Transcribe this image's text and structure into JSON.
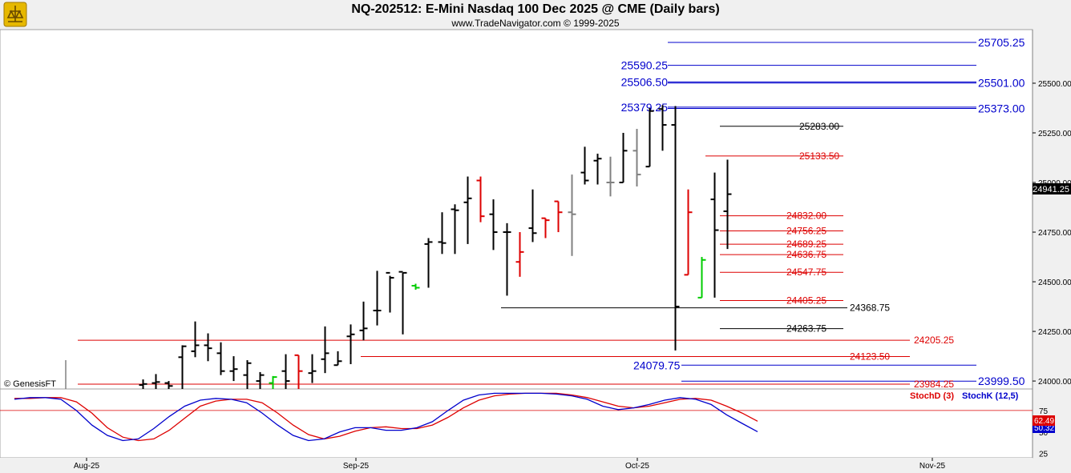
{
  "header": {
    "title": "NQ-202512:  E-Mini Nasdaq 100 Dec 2025 @ CME  (Daily bars)",
    "subtitle": "www.TradeNavigator.com © 1999-2025"
  },
  "watermark": "© GenesisFT",
  "colors": {
    "blue": "#0000cc",
    "red": "#dd0000",
    "black": "#000000",
    "green": "#00cc00",
    "gray": "#808080",
    "price_bg": "#000000"
  },
  "chart_data": [
    {
      "type": "ohlc",
      "title": "NQ-202512:  E-Mini Nasdaq 100 Dec 2025 @ CME  (Daily bars)",
      "x_ticks": [
        "Aug-25",
        "Sep-25",
        "Oct-25",
        "Nov-25"
      ],
      "y_ticks": [
        "25500.00",
        "25250.00",
        "25000.00",
        "24750.00",
        "24500.00",
        "24250.00",
        "24000.00"
      ],
      "ylim": [
        23960,
        25770
      ],
      "last_price": "24941.25",
      "levels": [
        {
          "label": "25705.25",
          "value": 25705.25,
          "color": "blue"
        },
        {
          "label": "25590.25",
          "value": 25590.25,
          "color": "blue"
        },
        {
          "label": "25506.50",
          "value": 25506.5,
          "color": "blue"
        },
        {
          "label": "25501.00",
          "value": 25501.0,
          "color": "blue"
        },
        {
          "label": "25379.25",
          "value": 25379.25,
          "color": "blue"
        },
        {
          "label": "25373.00",
          "value": 25373.0,
          "color": "blue"
        },
        {
          "label": "25283.00",
          "value": 25283.0,
          "color": "black"
        },
        {
          "label": "25133.50",
          "value": 25133.5,
          "color": "red"
        },
        {
          "label": "24832.00",
          "value": 24832.0,
          "color": "red"
        },
        {
          "label": "24756.25",
          "value": 24756.25,
          "color": "red"
        },
        {
          "label": "24689.25",
          "value": 24689.25,
          "color": "red"
        },
        {
          "label": "24636.75",
          "value": 24636.75,
          "color": "red"
        },
        {
          "label": "24547.75",
          "value": 24547.75,
          "color": "red"
        },
        {
          "label": "24405.25",
          "value": 24405.25,
          "color": "red"
        },
        {
          "label": "24368.75",
          "value": 24368.75,
          "color": "black"
        },
        {
          "label": "24263.75",
          "value": 24263.75,
          "color": "black"
        },
        {
          "label": "24205.25",
          "value": 24205.25,
          "color": "red"
        },
        {
          "label": "24123.50",
          "value": 24123.5,
          "color": "red"
        },
        {
          "label": "24079.75",
          "value": 24079.75,
          "color": "blue"
        },
        {
          "label": "23999.50",
          "value": 23999.5,
          "color": "blue"
        },
        {
          "label": "23984.25",
          "value": 23984.25,
          "color": "red"
        }
      ],
      "bars": [
        {
          "o": 23980,
          "h": 24008,
          "l": 23960,
          "c": 23985,
          "color": "black"
        },
        {
          "o": 23990,
          "h": 24035,
          "l": 23960,
          "c": 23995,
          "color": "black"
        },
        {
          "o": 23990,
          "h": 24000,
          "l": 23960,
          "c": 23975,
          "color": "black"
        },
        {
          "o": 24120,
          "h": 24180,
          "l": 23960,
          "c": 24175,
          "color": "black"
        },
        {
          "o": 24150,
          "h": 24300,
          "l": 24120,
          "c": 24180,
          "color": "black"
        },
        {
          "o": 24180,
          "h": 24240,
          "l": 24100,
          "c": 24165,
          "color": "black"
        },
        {
          "o": 24140,
          "h": 24195,
          "l": 24030,
          "c": 24050,
          "color": "black"
        },
        {
          "o": 24050,
          "h": 24125,
          "l": 24000,
          "c": 24060,
          "color": "black"
        },
        {
          "o": 24030,
          "h": 24105,
          "l": 23960,
          "c": 24090,
          "color": "black"
        },
        {
          "o": 24000,
          "h": 24045,
          "l": 23960,
          "c": 24030,
          "color": "black"
        },
        {
          "o": 23990,
          "h": 24025,
          "l": 23960,
          "c": 24020,
          "color": "green"
        },
        {
          "o": 24050,
          "h": 24135,
          "l": 23960,
          "c": 24000,
          "color": "black"
        },
        {
          "o": 24130,
          "h": 24130,
          "l": 23960,
          "c": 24050,
          "color": "red"
        },
        {
          "o": 24040,
          "h": 24135,
          "l": 23990,
          "c": 24050,
          "color": "black"
        },
        {
          "o": 24110,
          "h": 24275,
          "l": 24040,
          "c": 24140,
          "color": "black"
        },
        {
          "o": 24080,
          "h": 24150,
          "l": 24080,
          "c": 24100,
          "color": "black"
        },
        {
          "o": 24225,
          "h": 24285,
          "l": 24085,
          "c": 24235,
          "color": "black"
        },
        {
          "o": 24255,
          "h": 24400,
          "l": 24205,
          "c": 24265,
          "color": "black"
        },
        {
          "o": 24355,
          "h": 24555,
          "l": 24280,
          "c": 24355,
          "color": "black"
        },
        {
          "o": 24545,
          "h": 24530,
          "l": 24345,
          "c": 24520,
          "color": "black"
        },
        {
          "o": 24550,
          "h": 24545,
          "l": 24235,
          "c": 24545,
          "color": "black"
        },
        {
          "o": 24480,
          "h": 24490,
          "l": 24460,
          "c": 24470,
          "color": "green"
        },
        {
          "o": 24690,
          "h": 24720,
          "l": 24470,
          "c": 24700,
          "color": "black"
        },
        {
          "o": 24700,
          "h": 24850,
          "l": 24640,
          "c": 24695,
          "color": "black"
        },
        {
          "o": 24865,
          "h": 24890,
          "l": 24640,
          "c": 24860,
          "color": "black"
        },
        {
          "o": 24900,
          "h": 25030,
          "l": 24690,
          "c": 24920,
          "color": "black"
        },
        {
          "o": 25010,
          "h": 25030,
          "l": 24800,
          "c": 24830,
          "color": "red"
        },
        {
          "o": 24840,
          "h": 24915,
          "l": 24660,
          "c": 24750,
          "color": "black"
        },
        {
          "o": 24750,
          "h": 24795,
          "l": 24430,
          "c": 24750,
          "color": "black"
        },
        {
          "o": 24600,
          "h": 24750,
          "l": 24525,
          "c": 24650,
          "color": "red"
        },
        {
          "o": 24770,
          "h": 24965,
          "l": 24700,
          "c": 24745,
          "color": "black"
        },
        {
          "o": 24820,
          "h": 24820,
          "l": 24720,
          "c": 24810,
          "color": "red"
        },
        {
          "o": 24905,
          "h": 24905,
          "l": 24750,
          "c": 24850,
          "color": "red"
        },
        {
          "o": 24850,
          "h": 25040,
          "l": 24630,
          "c": 24840,
          "color": "gray"
        },
        {
          "o": 25050,
          "h": 25180,
          "l": 24990,
          "c": 25010,
          "color": "black"
        },
        {
          "o": 25110,
          "h": 25145,
          "l": 24990,
          "c": 25120,
          "color": "black"
        },
        {
          "o": 25000,
          "h": 25130,
          "l": 24930,
          "c": 25000,
          "color": "gray"
        },
        {
          "o": 25000,
          "h": 25250,
          "l": 25000,
          "c": 25160,
          "color": "black"
        },
        {
          "o": 25160,
          "h": 25270,
          "l": 24980,
          "c": 25040,
          "color": "gray"
        },
        {
          "o": 25080,
          "h": 25375,
          "l": 25080,
          "c": 25360,
          "color": "black"
        },
        {
          "o": 25370,
          "h": 25390,
          "l": 25160,
          "c": 25290,
          "color": "black"
        },
        {
          "o": 25290,
          "h": 25385,
          "l": 24154,
          "c": 24375,
          "color": "black"
        },
        {
          "o": 24535,
          "h": 24965,
          "l": 24535,
          "c": 24850,
          "color": "red"
        },
        {
          "o": 24420,
          "h": 24625,
          "l": 24420,
          "c": 24610,
          "color": "green"
        },
        {
          "o": 24915,
          "h": 25050,
          "l": 24420,
          "c": 24760,
          "color": "black"
        },
        {
          "o": 24855,
          "h": 25115,
          "l": 24665,
          "c": 24941.25,
          "color": "black"
        }
      ]
    },
    {
      "type": "line",
      "indicator": "Stochastic",
      "legend": [
        "StochD (3)",
        "StochK (12,5)"
      ],
      "y_ticks": [
        "75",
        "50",
        "25"
      ],
      "ylim": [
        20,
        100
      ],
      "values": [
        "62.49",
        "50.32"
      ],
      "series": [
        {
          "name": "StochD (3)",
          "color": "red",
          "values": [
            89,
            89,
            90,
            90,
            85,
            72,
            55,
            44,
            40,
            42,
            52,
            66,
            80,
            86,
            88,
            88,
            84,
            72,
            58,
            47,
            42,
            45,
            51,
            55,
            56,
            54,
            54,
            58,
            67,
            78,
            87,
            92,
            94,
            95,
            95,
            95,
            93,
            90,
            85,
            80,
            78,
            80,
            84,
            88,
            89,
            87,
            80,
            72,
            62.49
          ]
        },
        {
          "name": "StochK (12,5)",
          "color": "blue",
          "values": [
            88,
            90,
            90,
            88,
            75,
            58,
            46,
            40,
            42,
            54,
            68,
            80,
            87,
            89,
            88,
            84,
            72,
            58,
            46,
            40,
            42,
            50,
            55,
            55,
            52,
            52,
            55,
            62,
            75,
            87,
            93,
            95,
            95,
            95,
            95,
            94,
            92,
            88,
            80,
            76,
            78,
            82,
            87,
            90,
            88,
            82,
            70,
            60,
            50.32
          ]
        }
      ]
    }
  ]
}
